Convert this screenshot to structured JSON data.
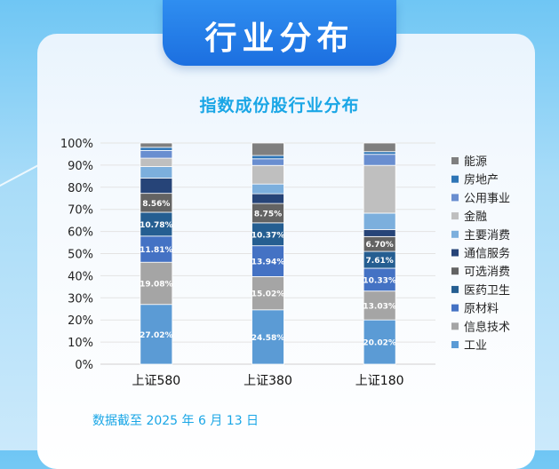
{
  "header": {
    "title": "行业分布"
  },
  "footnote": "数据截至 2025 年 6 月 13 日",
  "chart_data": {
    "type": "bar",
    "stacked": true,
    "title": "指数成份股行业分布",
    "categories": [
      "上证580",
      "上证380",
      "上证180"
    ],
    "ylim": [
      0,
      100
    ],
    "yticks": [
      "0%",
      "10%",
      "20%",
      "30%",
      "40%",
      "50%",
      "60%",
      "70%",
      "80%",
      "90%",
      "100%"
    ],
    "legend_position": "right",
    "grid": true,
    "series": [
      {
        "name": "工业",
        "color": "#5b9bd5",
        "label_color": "#ffffff",
        "values": [
          27.02,
          24.58,
          20.02
        ],
        "labels": [
          "27.02%",
          "24.58%",
          "20.02%"
        ]
      },
      {
        "name": "信息技术",
        "color": "#a5a5a5",
        "label_color": "#ffffff",
        "values": [
          19.08,
          15.02,
          13.03
        ],
        "labels": [
          "19.08%",
          "15.02%",
          "13.03%"
        ]
      },
      {
        "name": "原材料",
        "color": "#4472c4",
        "label_color": "#ffffff",
        "values": [
          11.81,
          13.94,
          10.33
        ],
        "labels": [
          "11.81%",
          "13.94%",
          "10.33%"
        ]
      },
      {
        "name": "医药卫生",
        "color": "#255e91",
        "label_color": "#ffffff",
        "values": [
          10.78,
          10.37,
          7.61
        ],
        "labels": [
          "10.78%",
          "10.37%",
          "7.61%"
        ]
      },
      {
        "name": "可选消费",
        "color": "#636363",
        "label_color": "#ffffff",
        "values": [
          8.56,
          8.75,
          6.7
        ],
        "labels": [
          "8.56%",
          "8.75%",
          "6.70%"
        ]
      },
      {
        "name": "通信服务",
        "color": "#264478",
        "label_color": "#ffffff",
        "values": [
          6.9,
          4.4,
          3.2
        ],
        "labels": [
          "",
          "",
          ""
        ]
      },
      {
        "name": "主要消费",
        "color": "#7cafdd",
        "label_color": "#ffffff",
        "values": [
          5.2,
          4.4,
          7.4
        ],
        "labels": [
          "",
          "",
          ""
        ]
      },
      {
        "name": "金融",
        "color": "#bfbfbf",
        "label_color": "#ffffff",
        "values": [
          3.8,
          8.4,
          21.6
        ],
        "labels": [
          "",
          "",
          ""
        ]
      },
      {
        "name": "公用事业",
        "color": "#698ed0",
        "label_color": "#ffffff",
        "values": [
          3.5,
          3.0,
          5.0
        ],
        "labels": [
          "",
          "",
          ""
        ]
      },
      {
        "name": "房地产",
        "color": "#2e75b6",
        "label_color": "#ffffff",
        "values": [
          1.4,
          1.5,
          1.2
        ],
        "labels": [
          "",
          "",
          ""
        ]
      },
      {
        "name": "能源",
        "color": "#7f7f7f",
        "label_color": "#ffffff",
        "values": [
          1.95,
          5.64,
          3.91
        ],
        "labels": [
          "",
          "",
          ""
        ]
      }
    ]
  }
}
